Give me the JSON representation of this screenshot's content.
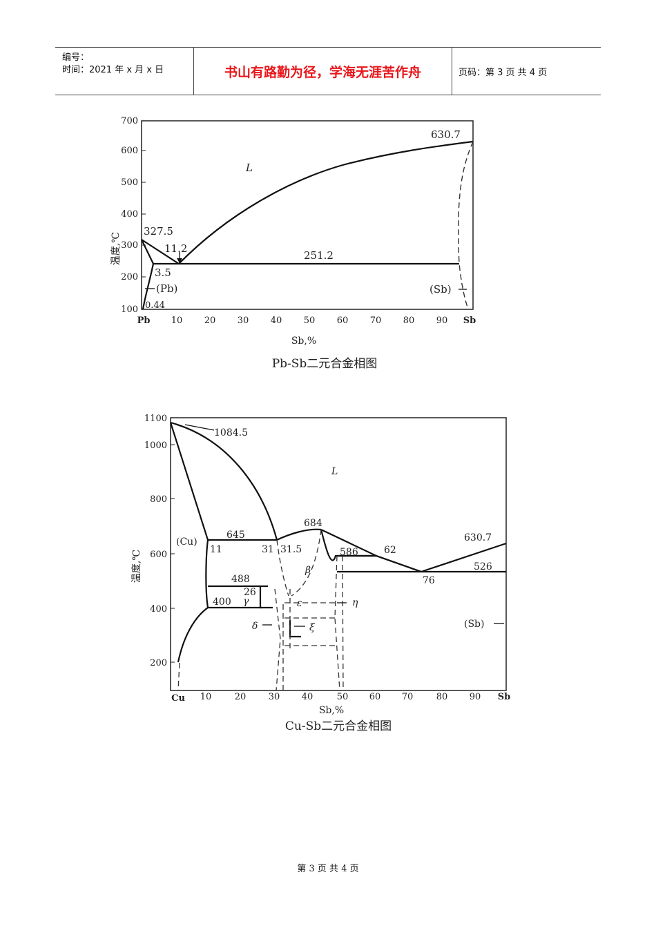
{
  "header": {
    "code_label": "编号：",
    "time_label": "时间：2021 年 x 月 x 日",
    "motto": "书山有路勤为径，学海无涯苦作舟",
    "page_info": "页码：第 3 页  共 4 页"
  },
  "pbsb": {
    "caption": "Pb-Sb二元合金相图",
    "ylabel": "温度,℃",
    "xlabel": "Sb,%",
    "y_ticks": [
      "700",
      "600",
      "500",
      "400",
      "300",
      "200",
      "100"
    ],
    "x_ticks": [
      "10",
      "20",
      "30",
      "40",
      "50",
      "60",
      "70",
      "80",
      "90"
    ],
    "x_start": "Pb",
    "x_end": "Sb",
    "labels": {
      "liquid": "L",
      "sb_melt": "630.7",
      "pb_melt": "327.5",
      "eutectic_comp": "11.2",
      "eutectic_temp": "251.2",
      "solubility": "3.5",
      "pb_phase": "(Pb)",
      "low_solubility": "0.44",
      "sb_phase": "(Sb)"
    }
  },
  "cusb": {
    "caption": "Cu-Sb二元合金相图",
    "ylabel": "温度,℃",
    "xlabel": "Sb,%",
    "y_ticks": [
      "1100",
      "1000",
      "800",
      "600",
      "400",
      "200"
    ],
    "x_ticks": [
      "10",
      "20",
      "30",
      "40",
      "50",
      "60",
      "70",
      "80",
      "90"
    ],
    "x_start": "Cu",
    "x_end": "Sb",
    "labels": {
      "liquid": "L",
      "cu_melt": "1084.5",
      "sb_melt": "630.7",
      "cu_phase": "(Cu)",
      "t645": "645",
      "c11": "11",
      "c31": "31",
      "c31_5": "31.5",
      "t684": "684",
      "t586": "586",
      "c62": "62",
      "t526": "526",
      "c76": "76",
      "t488": "488",
      "c26": "26",
      "t400": "400",
      "beta": "β",
      "gamma": "γ",
      "epsilon": "ε",
      "eta": "η",
      "delta": "δ",
      "xi": "ξ",
      "sb_phase": "(Sb)"
    }
  },
  "footer": {
    "page": "第 3 页 共 4 页"
  }
}
